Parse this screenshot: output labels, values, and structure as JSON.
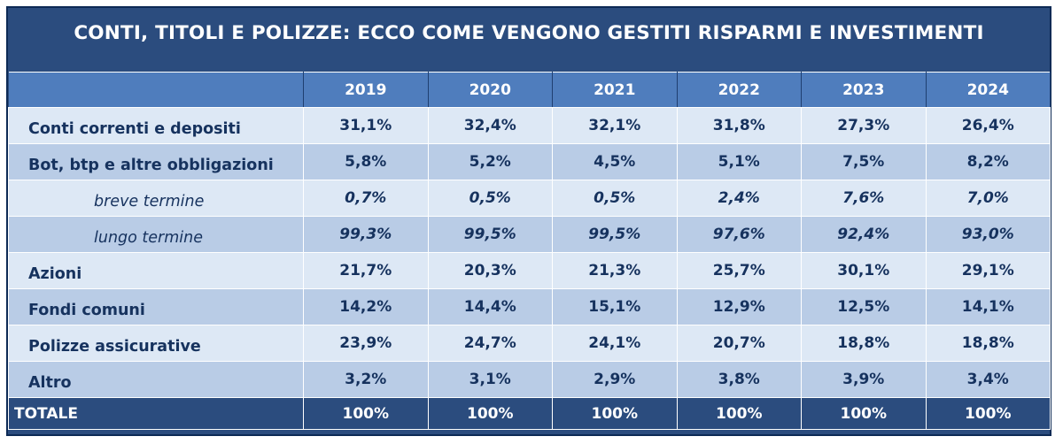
{
  "title": "CONTI, TITOLI E POLIZZE: ECCO COME VENGONO GESTITI RISPARMI E INVESTIMENTI",
  "colors": {
    "header_bg": "#2b4c7e",
    "column_header_bg": "#4f7dbd",
    "row_light": "#dde8f5",
    "row_dark": "#b9cce6",
    "text_dark": "#16325e"
  },
  "chart_data": {
    "type": "table",
    "title": "CONTI, TITOLI E POLIZZE: ECCO COME VENGONO GESTITI RISPARMI E INVESTIMENTI",
    "columns": [
      "2019",
      "2020",
      "2021",
      "2022",
      "2023",
      "2024"
    ],
    "rows": [
      {
        "label": "Conti correnti e depositi",
        "indent": false,
        "values": [
          "31,1%",
          "32,4%",
          "32,1%",
          "31,8%",
          "27,3%",
          "26,4%"
        ]
      },
      {
        "label": "Bot, btp e altre obbligazioni",
        "indent": false,
        "values": [
          "5,8%",
          "5,2%",
          "4,5%",
          "5,1%",
          "7,5%",
          "8,2%"
        ]
      },
      {
        "label": "breve termine",
        "indent": true,
        "values": [
          "0,7%",
          "0,5%",
          "0,5%",
          "2,4%",
          "7,6%",
          "7,0%"
        ]
      },
      {
        "label": "lungo termine",
        "indent": true,
        "values": [
          "99,3%",
          "99,5%",
          "99,5%",
          "97,6%",
          "92,4%",
          "93,0%"
        ]
      },
      {
        "label": "Azioni",
        "indent": false,
        "values": [
          "21,7%",
          "20,3%",
          "21,3%",
          "25,7%",
          "30,1%",
          "29,1%"
        ]
      },
      {
        "label": "Fondi comuni",
        "indent": false,
        "values": [
          "14,2%",
          "14,4%",
          "15,1%",
          "12,9%",
          "12,5%",
          "14,1%"
        ]
      },
      {
        "label": "Polizze assicurative",
        "indent": false,
        "values": [
          "23,9%",
          "24,7%",
          "24,1%",
          "20,7%",
          "18,8%",
          "18,8%"
        ]
      },
      {
        "label": "Altro",
        "indent": false,
        "values": [
          "3,2%",
          "3,1%",
          "2,9%",
          "3,8%",
          "3,9%",
          "3,4%"
        ]
      }
    ],
    "total": {
      "label": "TOTALE",
      "values": [
        "100%",
        "100%",
        "100%",
        "100%",
        "100%",
        "100%"
      ]
    }
  }
}
